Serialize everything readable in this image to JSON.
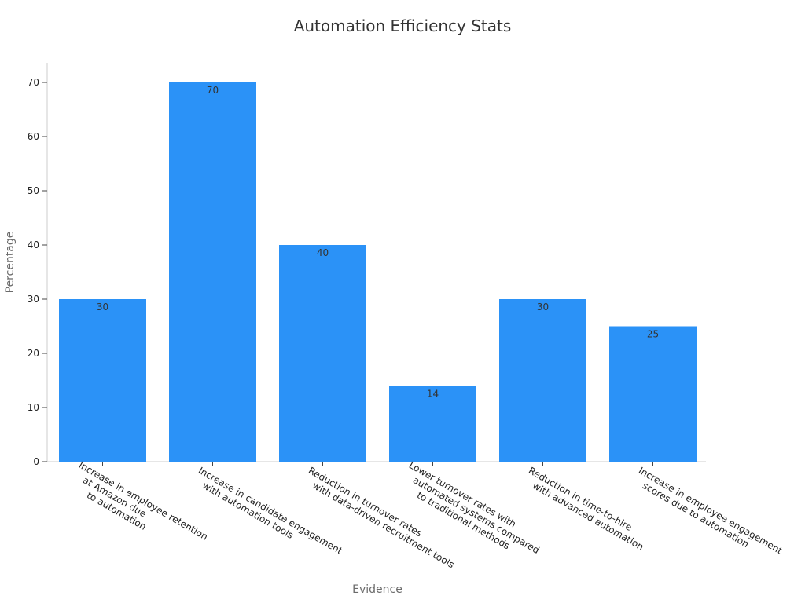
{
  "chart_data": {
    "type": "bar",
    "title": "Automation Efficiency Stats",
    "xlabel": "Evidence",
    "ylabel": "Percentage",
    "ylim": [
      0,
      74
    ],
    "yticks": [
      "0",
      "10",
      "20",
      "30",
      "40",
      "50",
      "60",
      "70"
    ],
    "categories": [
      [
        "Increase in employee retention",
        "at Amazon due",
        "to automation"
      ],
      [
        "Increase in candidate engagement",
        "with automation tools"
      ],
      [
        "Reduction in turnover rates",
        "with data-driven recruitment tools"
      ],
      [
        "Lower turnover rates with",
        "automated systems compared",
        "to traditional methods"
      ],
      [
        "Reduction in time-to-hire",
        "with advanced automation"
      ],
      [
        "Increase in employee engagement",
        "scores due to automation"
      ]
    ],
    "values": [
      30,
      70,
      40,
      14,
      30,
      25
    ],
    "bar_color": "#2b92f7",
    "grid": false,
    "legend": "none"
  }
}
